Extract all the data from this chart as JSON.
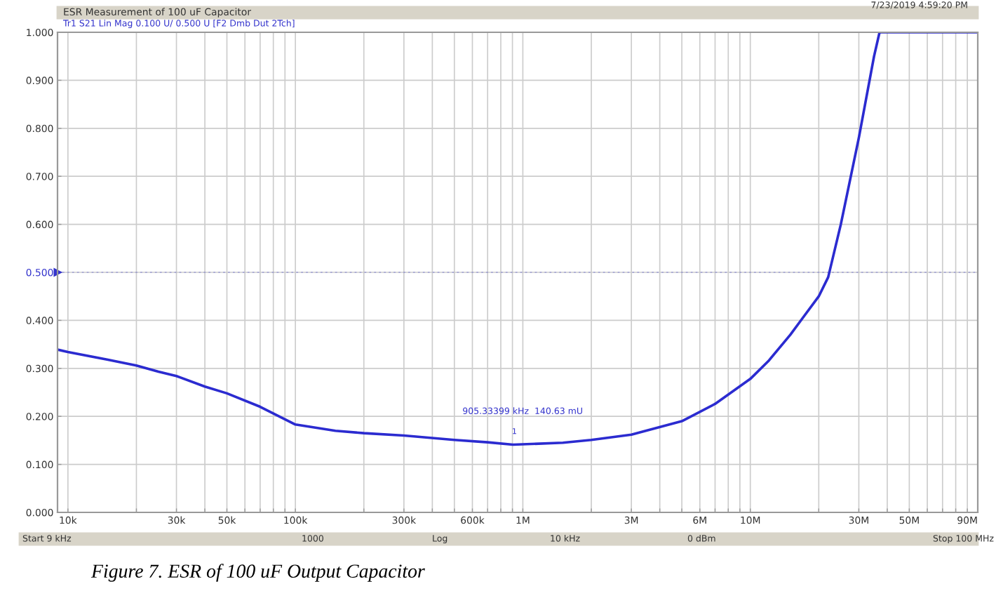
{
  "chart_data": {
    "type": "line",
    "title": "ESR Measurement of 100 uF Capacitor",
    "subtitle": "Tr1 S21 Lin Mag 0.100 U/ 0.500 U [F2 Dmb Dut 2Tch]",
    "log": "x",
    "grid": true,
    "legend": false,
    "marker": "none",
    "line_style": "solid",
    "xlim": [
      9000,
      100000000
    ],
    "ylim": [
      0,
      1
    ],
    "xticks": [
      {
        "value": 10000,
        "label": "10k"
      },
      {
        "value": 20000,
        "label": null
      },
      {
        "value": 30000,
        "label": "30k"
      },
      {
        "value": 40000,
        "label": null
      },
      {
        "value": 50000,
        "label": "50k"
      },
      {
        "value": 60000,
        "label": null
      },
      {
        "value": 70000,
        "label": null
      },
      {
        "value": 80000,
        "label": null
      },
      {
        "value": 90000,
        "label": null
      },
      {
        "value": 100000,
        "label": "100k"
      },
      {
        "value": 200000,
        "label": null
      },
      {
        "value": 300000,
        "label": "300k"
      },
      {
        "value": 400000,
        "label": null
      },
      {
        "value": 500000,
        "label": null
      },
      {
        "value": 600000,
        "label": "600k"
      },
      {
        "value": 700000,
        "label": null
      },
      {
        "value": 800000,
        "label": null
      },
      {
        "value": 900000,
        "label": null
      },
      {
        "value": 1000000,
        "label": "1M"
      },
      {
        "value": 2000000,
        "label": null
      },
      {
        "value": 3000000,
        "label": "3M"
      },
      {
        "value": 4000000,
        "label": null
      },
      {
        "value": 5000000,
        "label": null
      },
      {
        "value": 6000000,
        "label": "6M"
      },
      {
        "value": 7000000,
        "label": null
      },
      {
        "value": 8000000,
        "label": null
      },
      {
        "value": 9000000,
        "label": null
      },
      {
        "value": 10000000,
        "label": "10M"
      },
      {
        "value": 20000000,
        "label": null
      },
      {
        "value": 30000000,
        "label": "30M"
      },
      {
        "value": 40000000,
        "label": null
      },
      {
        "value": 50000000,
        "label": "50M"
      },
      {
        "value": 60000000,
        "label": null
      },
      {
        "value": 70000000,
        "label": null
      },
      {
        "value": 80000000,
        "label": null
      },
      {
        "value": 90000000,
        "label": "90M"
      }
    ],
    "yticks": [
      {
        "value": 0,
        "label": "0.000"
      },
      {
        "value": 0.1,
        "label": "0.100"
      },
      {
        "value": 0.2,
        "label": "0.200"
      },
      {
        "value": 0.3,
        "label": "0.300"
      },
      {
        "value": 0.4,
        "label": "0.400"
      },
      {
        "value": 0.5,
        "label": "0.500"
      },
      {
        "value": 0.6,
        "label": "0.600"
      },
      {
        "value": 0.7,
        "label": "0.700"
      },
      {
        "value": 0.8,
        "label": "0.800"
      },
      {
        "value": 0.9,
        "label": "0.900"
      },
      {
        "value": 1,
        "label": "1.000"
      }
    ],
    "ref_lines": [
      {
        "axis": "y",
        "value": 0.5,
        "color": "#3333cc"
      }
    ],
    "series": [
      {
        "color": "#2b2bd0",
        "x": [
          9000,
          10000,
          15000,
          20000,
          25000,
          30000,
          40000,
          50000,
          70000,
          100000,
          150000,
          200000,
          300000,
          500000,
          700000,
          905334,
          1500000,
          2000000,
          3000000,
          5000000,
          7000000,
          10000000,
          12000000,
          15000000,
          17000000,
          20000000,
          22000000,
          25000000,
          30000000,
          35000000,
          37000000,
          50000000,
          100000000
        ],
        "values": [
          0.339,
          0.334,
          0.318,
          0.306,
          0.293,
          0.284,
          0.262,
          0.248,
          0.22,
          0.183,
          0.17,
          0.165,
          0.16,
          0.151,
          0.146,
          0.141,
          0.145,
          0.151,
          0.162,
          0.19,
          0.226,
          0.278,
          0.315,
          0.37,
          0.405,
          0.45,
          0.49,
          0.6,
          0.78,
          0.95,
          1.0,
          1.0,
          1.0
        ]
      }
    ],
    "annotations": [
      "1",
      "905.33399 kHz  140.63 mU",
      "7/23/2019 4:59:20 PM",
      "Start 9 kHz",
      "1000",
      "Log",
      "10 kHz",
      "0 dBm",
      "Stop 100 MHz",
      "Figure 7. ESR of 100 uF Output Capacitor"
    ]
  }
}
